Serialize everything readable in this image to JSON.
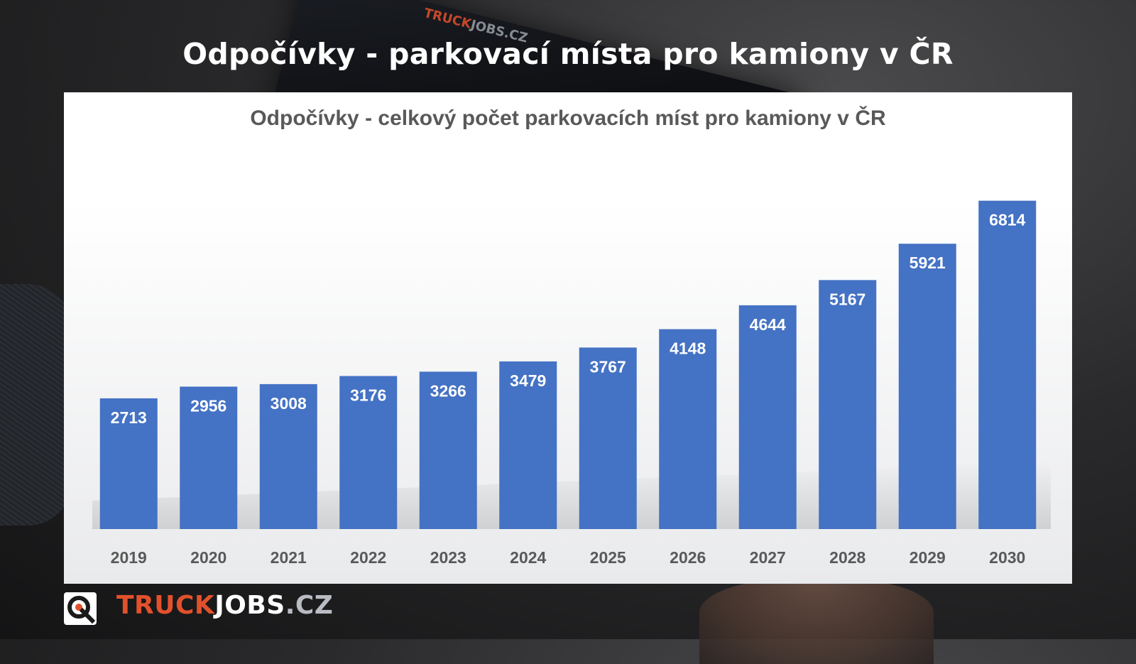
{
  "headline": "Odpočívky - parkovací místa pro kamiony v ČR",
  "background": {
    "tablet_logo_a": "TRUCK",
    "tablet_logo_b": "JOBS.CZ"
  },
  "chart_data": {
    "type": "bar",
    "title": "Odpočívky - celkový počet parkovacích míst pro kamiony v ČR",
    "categories": [
      "2019",
      "2020",
      "2021",
      "2022",
      "2023",
      "2024",
      "2025",
      "2026",
      "2027",
      "2028",
      "2029",
      "2030"
    ],
    "values": [
      2713,
      2956,
      3008,
      3176,
      3266,
      3479,
      3767,
      4148,
      4644,
      5167,
      5921,
      6814
    ],
    "xlabel": "",
    "ylabel": "",
    "ylim": [
      0,
      7000
    ],
    "grid": false,
    "data_labels": "inside-top",
    "bar_color": "#4472c4"
  },
  "footer": {
    "brand_part1": "TRUCK",
    "brand_part2": "JOBS",
    "brand_part3": ".CZ"
  },
  "colors": {
    "brand_orange": "#e2512c",
    "bar_blue": "#4472c4"
  }
}
